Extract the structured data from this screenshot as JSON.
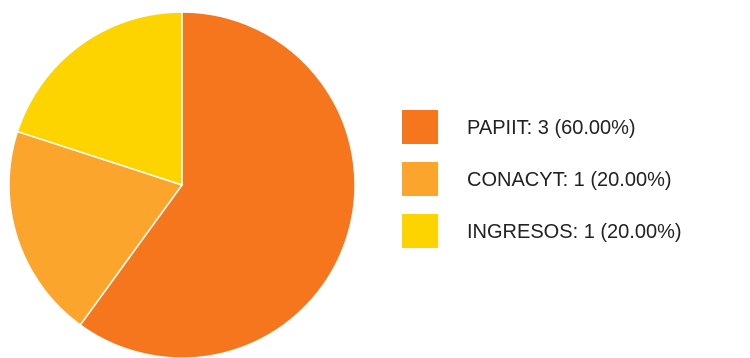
{
  "chart_data": {
    "type": "pie",
    "title": "",
    "slices": [
      {
        "label": "PAPIIT",
        "value": 3,
        "display": "PAPIIT: 3 (60.00%)",
        "color": "#f5761c"
      },
      {
        "label": "CONACYT",
        "value": 1,
        "display": "CONACYT: 1 (20.00%)",
        "color": "#fca52c"
      },
      {
        "label": "INGRESOS",
        "value": 1,
        "display": "INGRESOS: 1 (20.00%)",
        "color": "#fdd400"
      }
    ],
    "start_angle_deg": 0,
    "direction": "clockwise",
    "legend": {
      "position": "right"
    }
  }
}
